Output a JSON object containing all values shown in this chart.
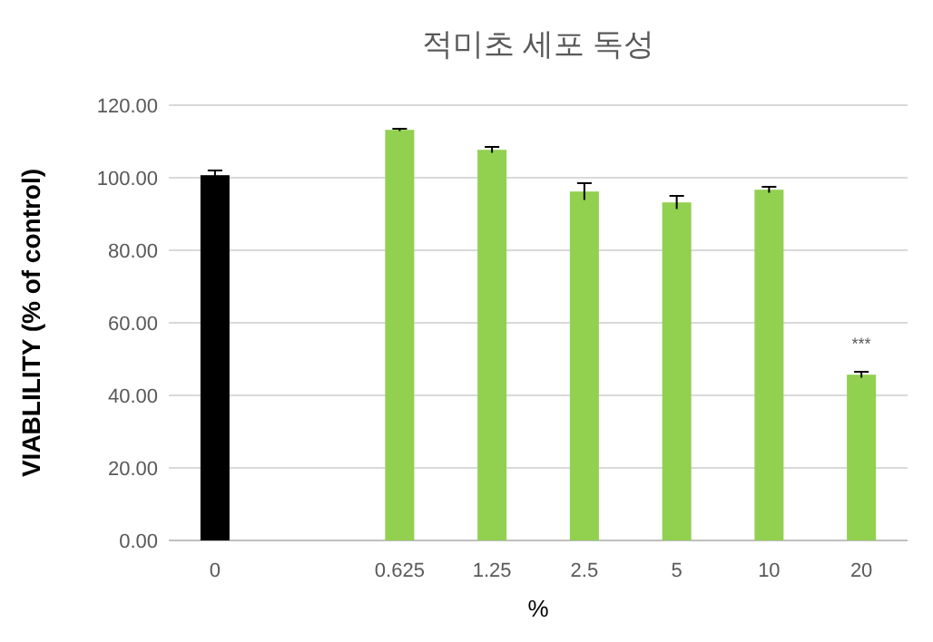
{
  "chart_data": {
    "type": "bar",
    "title": "적미초 세포 독성",
    "xlabel": "%",
    "ylabel": "VIABLILITY (% of control)",
    "categories": [
      "0",
      null,
      "0.625",
      "1.25",
      "2.5",
      "5",
      "10",
      "20"
    ],
    "values": [
      100.7,
      null,
      113.2,
      107.7,
      96.2,
      93.2,
      96.7,
      45.7
    ],
    "errors": [
      1.3,
      null,
      0.3,
      0.8,
      2.3,
      1.8,
      0.8,
      0.8
    ],
    "colors": [
      "#000000",
      null,
      "#92d050",
      "#92d050",
      "#92d050",
      "#92d050",
      "#92d050",
      "#92d050"
    ],
    "ylim": [
      0,
      120
    ],
    "yticks": [
      {
        "value": 0,
        "label": "0.00"
      },
      {
        "value": 20,
        "label": "20.00"
      },
      {
        "value": 40,
        "label": "40.00"
      },
      {
        "value": 60,
        "label": "60.00"
      },
      {
        "value": 80,
        "label": "80.00"
      },
      {
        "value": 100,
        "label": "100.00"
      },
      {
        "value": 120,
        "label": "120.00"
      }
    ],
    "grid": "y",
    "annotations": [
      {
        "text": "***",
        "x": "20",
        "y": 45.7
      }
    ]
  }
}
